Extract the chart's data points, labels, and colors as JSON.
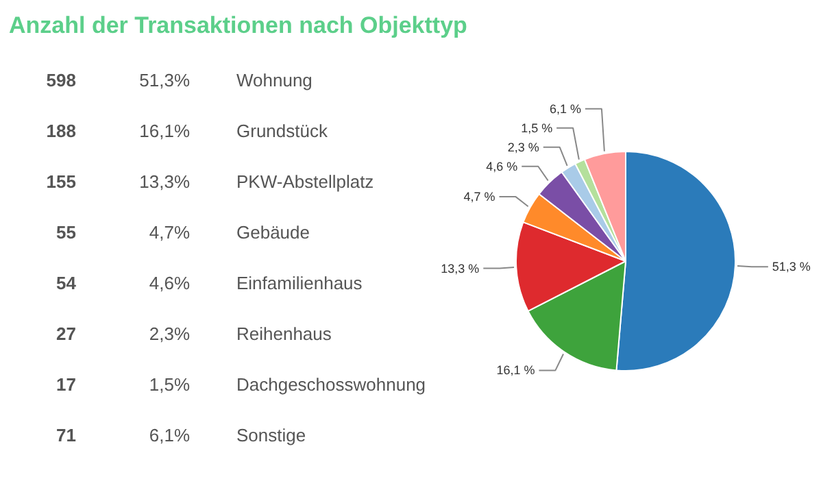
{
  "chart_data": [
    {
      "type": "other",
      "title": "Anzahl der Transaktionen nach Objekttyp",
      "annotations": [
        "598",
        "51,3%",
        "Wohnung",
        "188",
        "16,1%",
        "Grundstück",
        "155",
        "13,3%",
        "PKW-Abstellplatz",
        "55",
        "4,7%",
        "Gebäude",
        "54",
        "4,6%",
        "Einfamilienhaus",
        "27",
        "2,3%",
        "Reihenhaus",
        "17",
        "1,5%",
        "Dachgeschosswohnung",
        "71",
        "6,1%",
        "Sonstige"
      ]
    },
    {
      "type": "pie",
      "categories": [
        null,
        null,
        null,
        null,
        null,
        null,
        null,
        null
      ],
      "values": [
        51.3,
        16.1,
        13.3,
        4.7,
        4.6,
        2.3,
        1.5,
        6.1
      ],
      "colors": [
        "#2b7bba",
        "#3ea33c",
        "#de2a2e",
        "#ff8a2a",
        "#7a4ea6",
        "#a9cbe8",
        "#b4e09c",
        "#ff9b9b"
      ],
      "value_labels": [
        "51,3 %",
        "16,1 %",
        "13,3 %",
        "4,7 %",
        "4,6 %",
        "2,3 %",
        "1,5 %",
        "6,1 %"
      ]
    }
  ]
}
